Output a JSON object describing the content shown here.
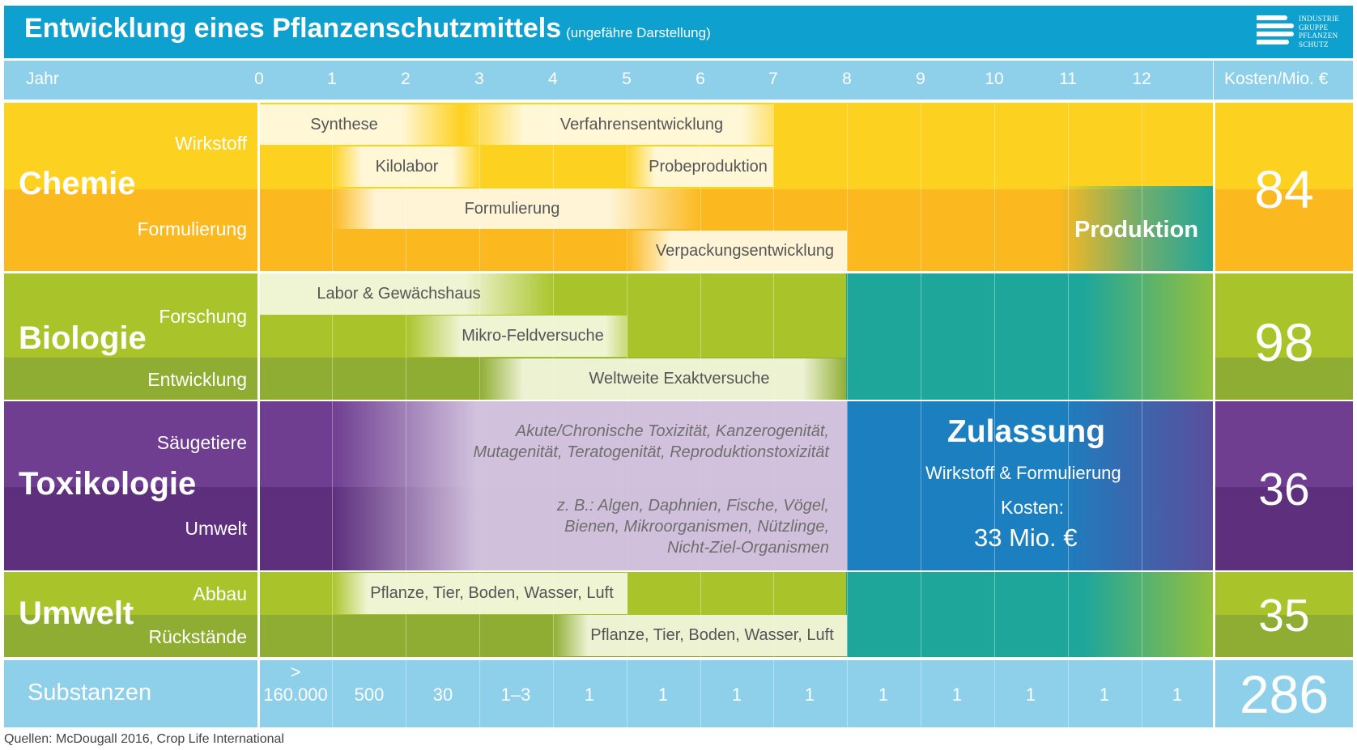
{
  "title": {
    "main": "Entwicklung eines Pflanzenschutzmittels",
    "sub": "(ungefähre Darstellung)",
    "logo_lines": [
      "INDUSTRIE",
      "GRUPPE",
      "PFLANZEN",
      "SCHUTZ"
    ]
  },
  "header": {
    "jahr_label": "Jahr",
    "years": [
      "0",
      "1",
      "2",
      "3",
      "4",
      "5",
      "6",
      "7",
      "8",
      "9",
      "10",
      "11",
      "12"
    ],
    "kosten_label": "Kosten/Mio. €"
  },
  "chemie": {
    "label": "Chemie",
    "sub1": "Wirkstoff",
    "sub2": "Formulierung",
    "bands": [
      "Synthese",
      "Verfahrensentwicklung",
      "Kilolabor",
      "Probeproduktion",
      "Formulierung",
      "Verpackungsentwicklung"
    ],
    "produktion": "Produktion",
    "cost": "84"
  },
  "biologie": {
    "label": "Biologie",
    "sub1": "Forschung",
    "sub2": "Entwicklung",
    "bands": [
      "Labor & Gewächshaus",
      "Mikro-Feldversuche",
      "Weltweite Exaktversuche"
    ],
    "cost": "98"
  },
  "toxikologie": {
    "label": "Toxikologie",
    "sub1": "Säugetiere",
    "sub2": "Umwelt",
    "text1": [
      "Akute/Chronische Toxizität, Kanzerogenität,",
      "Mutagenität, Teratogenität, Reproduktionstoxizität"
    ],
    "text2": [
      "z. B.: Algen, Daphnien, Fische, Vögel,",
      "Bienen, Mikroorganismen, Nützlinge,",
      "Nicht-Ziel-Organismen"
    ],
    "cost": "36"
  },
  "zulassung": {
    "title": "Zulassung",
    "sub": "Wirkstoff & Formulierung",
    "kosten_label": "Kosten:",
    "kosten_value": "33 Mio. €"
  },
  "umwelt": {
    "label": "Umwelt",
    "sub1": "Abbau",
    "sub2": "Rückstände",
    "band1": "Pflanze, Tier, Boden, Wasser, Luft",
    "band2": "Pflanze, Tier, Boden, Wasser, Luft",
    "cost": "35"
  },
  "substanzen": {
    "label": "Substanzen",
    "first_top": ">",
    "values": [
      "160.000",
      "500",
      "30",
      "1–3",
      "1",
      "1",
      "1",
      "1",
      "1",
      "1",
      "1",
      "1",
      "1"
    ],
    "total": "286"
  },
  "footer": "Quellen: McDougall 2016, Crop Life International",
  "colors": {
    "blue_title": "#0ea0cf",
    "light_blue": "#8ecfe9",
    "chemie_yellow": "#fdd11f",
    "chemie_orange": "#fbb91f",
    "biologie_green": "#a9c42b",
    "biologie_dark": "#8fad32",
    "toxikologie_purple": "#6f3e91",
    "toxikologie_dark": "#5d2f7d",
    "teal": "#1fa69b",
    "zulassung_blue": "#1c7fbf"
  }
}
